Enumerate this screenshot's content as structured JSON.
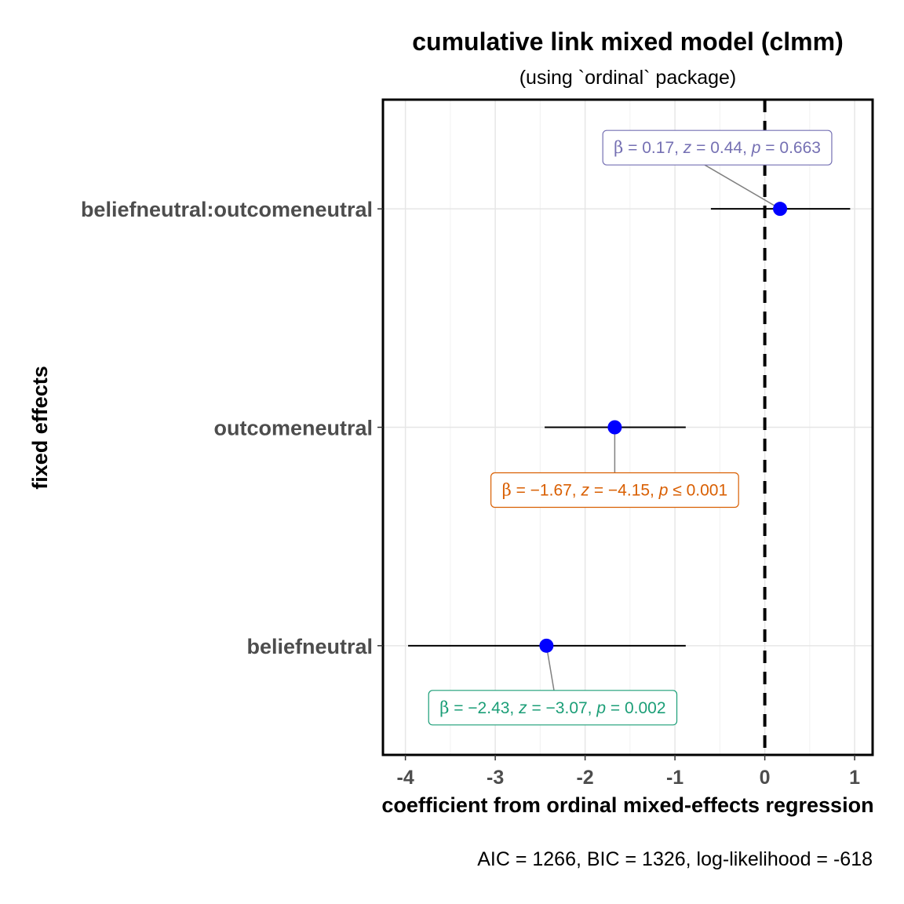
{
  "chart_data": {
    "type": "scatter",
    "title": "cumulative link mixed model (clmm)",
    "subtitle": "(using `ordinal` package)",
    "xlabel": "coefficient from ordinal mixed-effects regression",
    "ylabel": "fixed effects",
    "caption": "AIC = 1266, BIC = 1326, log-likelihood = -618",
    "xlim": [
      -4.25,
      1.2
    ],
    "xticks": [
      "-4",
      "-3",
      "-2",
      "-1",
      "0",
      "1"
    ],
    "reference_line": 0,
    "grid": true,
    "point_color": "#0000ff",
    "categories": [
      "beliefneutral",
      "outcomeneutral",
      "beliefneutral:outcomeneutral"
    ],
    "estimates": [
      {
        "term": "beliefneutral:outcomeneutral",
        "estimate": 0.17,
        "conf_low": -0.6,
        "conf_high": 0.95,
        "label_beta": "0.17",
        "label_z": "0.44",
        "label_p": "0.663",
        "p_relation": "=",
        "label_color": "#7570b3"
      },
      {
        "term": "outcomeneutral",
        "estimate": -1.67,
        "conf_low": -2.45,
        "conf_high": -0.88,
        "label_beta": "−1.67",
        "label_z": "−4.15",
        "label_p": "0.001",
        "p_relation": "≤",
        "label_color": "#d95f02"
      },
      {
        "term": "beliefneutral",
        "estimate": -2.43,
        "conf_low": -3.97,
        "conf_high": -0.88,
        "label_beta": "−2.43",
        "label_z": "−3.07",
        "label_p": "0.002",
        "p_relation": "=",
        "label_color": "#1b9e77"
      }
    ]
  }
}
